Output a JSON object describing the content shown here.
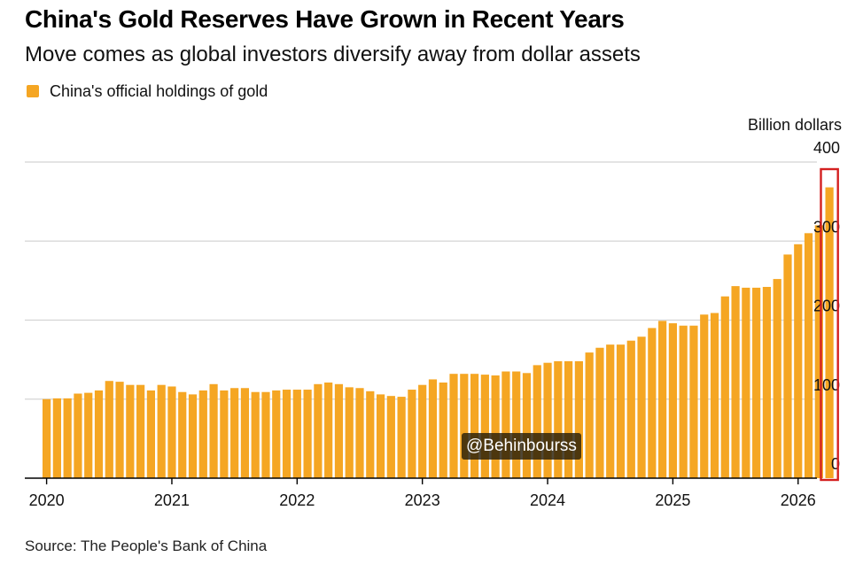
{
  "header": {
    "title": "China's Gold Reserves Have Grown in Recent Years",
    "subtitle": "Move comes as global investors diversify away from dollar assets"
  },
  "legend": {
    "label": "China's official holdings of gold",
    "color": "#f5a623"
  },
  "axis": {
    "unit_label": "Billion dollars"
  },
  "watermark": {
    "text": "@Behinbourss"
  },
  "footer": {
    "source": "Source: The People's Bank of China"
  },
  "colors": {
    "bar": "#f5a623",
    "highlight": "#d42020",
    "grid": "#d4d4d4",
    "baseline": "#000000"
  },
  "chart_data": {
    "type": "bar",
    "title": "China's Gold Reserves Have Grown in Recent Years",
    "subtitle": "Move comes as global investors diversify away from dollar assets",
    "ylabel": "Billion dollars",
    "xlabel": "",
    "ylim": [
      0,
      400
    ],
    "yticks": [
      0,
      100,
      200,
      300,
      400
    ],
    "grid": true,
    "y_axis_side": "right",
    "xticks": [
      "2020",
      "2021",
      "2022",
      "2023",
      "2024",
      "2025",
      "2026"
    ],
    "highlight": "latest month (2026) boxed in red",
    "series": [
      {
        "name": "China's official holdings of gold",
        "color": "#f5a623",
        "start": "2020-01",
        "frequency": "monthly",
        "values": [
          100,
          101,
          101,
          107,
          108,
          111,
          123,
          122,
          118,
          118,
          111,
          118,
          116,
          109,
          106,
          111,
          119,
          111,
          114,
          114,
          109,
          109,
          111,
          112,
          112,
          112,
          119,
          121,
          119,
          115,
          114,
          110,
          106,
          104,
          103,
          112,
          118,
          125,
          121,
          132,
          132,
          132,
          131,
          130,
          135,
          135,
          133,
          143,
          146,
          148,
          148,
          148,
          159,
          165,
          169,
          169,
          174,
          179,
          190,
          199,
          196,
          193,
          193,
          207,
          209,
          230,
          243,
          241,
          241,
          242,
          252,
          283,
          296,
          310,
          320,
          368
        ]
      }
    ]
  }
}
